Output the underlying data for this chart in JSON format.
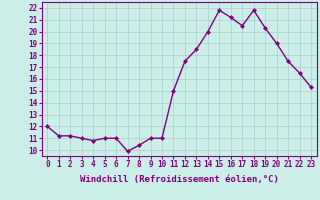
{
  "x": [
    0,
    1,
    2,
    3,
    4,
    5,
    6,
    7,
    8,
    9,
    10,
    11,
    12,
    13,
    14,
    15,
    16,
    17,
    18,
    19,
    20,
    21,
    22,
    23
  ],
  "y": [
    12.0,
    11.2,
    11.2,
    11.0,
    10.8,
    11.0,
    11.0,
    9.9,
    10.4,
    11.0,
    11.0,
    15.0,
    17.5,
    18.5,
    20.0,
    21.8,
    21.2,
    20.5,
    21.8,
    20.3,
    19.0,
    17.5,
    16.5,
    15.3
  ],
  "line_color": "#800080",
  "marker": "D",
  "marker_size": 2.0,
  "xlabel": "Windchill (Refroidissement éolien,°C)",
  "xlabel_fontsize": 6.5,
  "ylabel_ticks": [
    10,
    11,
    12,
    13,
    14,
    15,
    16,
    17,
    18,
    19,
    20,
    21,
    22
  ],
  "xlim": [
    -0.5,
    23.5
  ],
  "ylim": [
    9.5,
    22.5
  ],
  "bg_color": "#cceee8",
  "grid_color": "#aacccc",
  "tick_color": "#800080",
  "tick_fontsize": 5.5,
  "line_width": 1.0
}
